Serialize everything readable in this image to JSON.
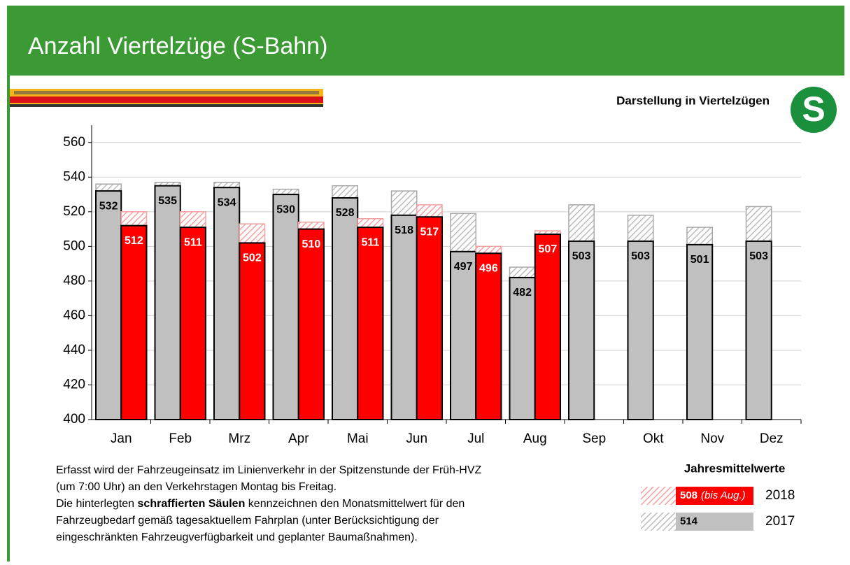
{
  "chart_data": {
    "type": "bar",
    "title": "Anzahl Viertelzüge (S-Bahn)",
    "subtitle": "Darstellung in Viertelzügen",
    "logo": "S",
    "categories": [
      "Jan",
      "Feb",
      "Mrz",
      "Apr",
      "Mai",
      "Jun",
      "Jul",
      "Aug",
      "Sep",
      "Okt",
      "Nov",
      "Dez"
    ],
    "series": [
      {
        "name": "2017",
        "color": "#c0c0c0",
        "label_color": "#000000",
        "values": [
          532,
          535,
          534,
          530,
          528,
          518,
          497,
          482,
          503,
          503,
          501,
          503
        ],
        "target_values": [
          536,
          537,
          537,
          533,
          535,
          532,
          519,
          488,
          524,
          518,
          511,
          523
        ]
      },
      {
        "name": "2018",
        "color": "#ff0000",
        "label_color": "#ffffff",
        "values": [
          512,
          511,
          502,
          510,
          511,
          517,
          496,
          507,
          null,
          null,
          null,
          null
        ],
        "target_values": [
          520,
          520,
          513,
          514,
          516,
          524,
          500,
          509,
          null,
          null,
          null,
          null
        ]
      }
    ],
    "ylim": [
      400,
      570
    ],
    "yticks": [
      400,
      420,
      440,
      460,
      480,
      500,
      520,
      540,
      560
    ],
    "grid": true,
    "notes": [
      [
        {
          "text": "Erfasst wird der Fahrzeugeinsatz im Linienverkehr in der Spitzenstunde der Früh-HVZ"
        }
      ],
      [
        {
          "text": "(um 7:00 Uhr) an den Verkehrstagen Montag bis Freitag."
        }
      ],
      [
        {
          "text": "Die hinterlegten "
        },
        {
          "text": "schraffierten Säulen",
          "bold": true
        },
        {
          "text": " kennzeichnen den Monatsmittelwert für den"
        }
      ],
      [
        {
          "text": "Fahrzeugbedarf gemäß tagesaktuellem Fahrplan (unter Berücksichtigung der"
        }
      ],
      [
        {
          "text": "eingeschränkten Fahrzeugverfügbarkeit und geplanter Baumaßnahmen)."
        }
      ]
    ],
    "annual_means": {
      "title": "Jahresmittelwerte",
      "entries": [
        {
          "value": 508,
          "note": "(bis Aug.)",
          "year": "2018",
          "color": "#ff0000",
          "text_color": "#ffffff"
        },
        {
          "value": 514,
          "year": "2017",
          "color": "#c0c0c0",
          "text_color": "#000000"
        }
      ]
    }
  }
}
